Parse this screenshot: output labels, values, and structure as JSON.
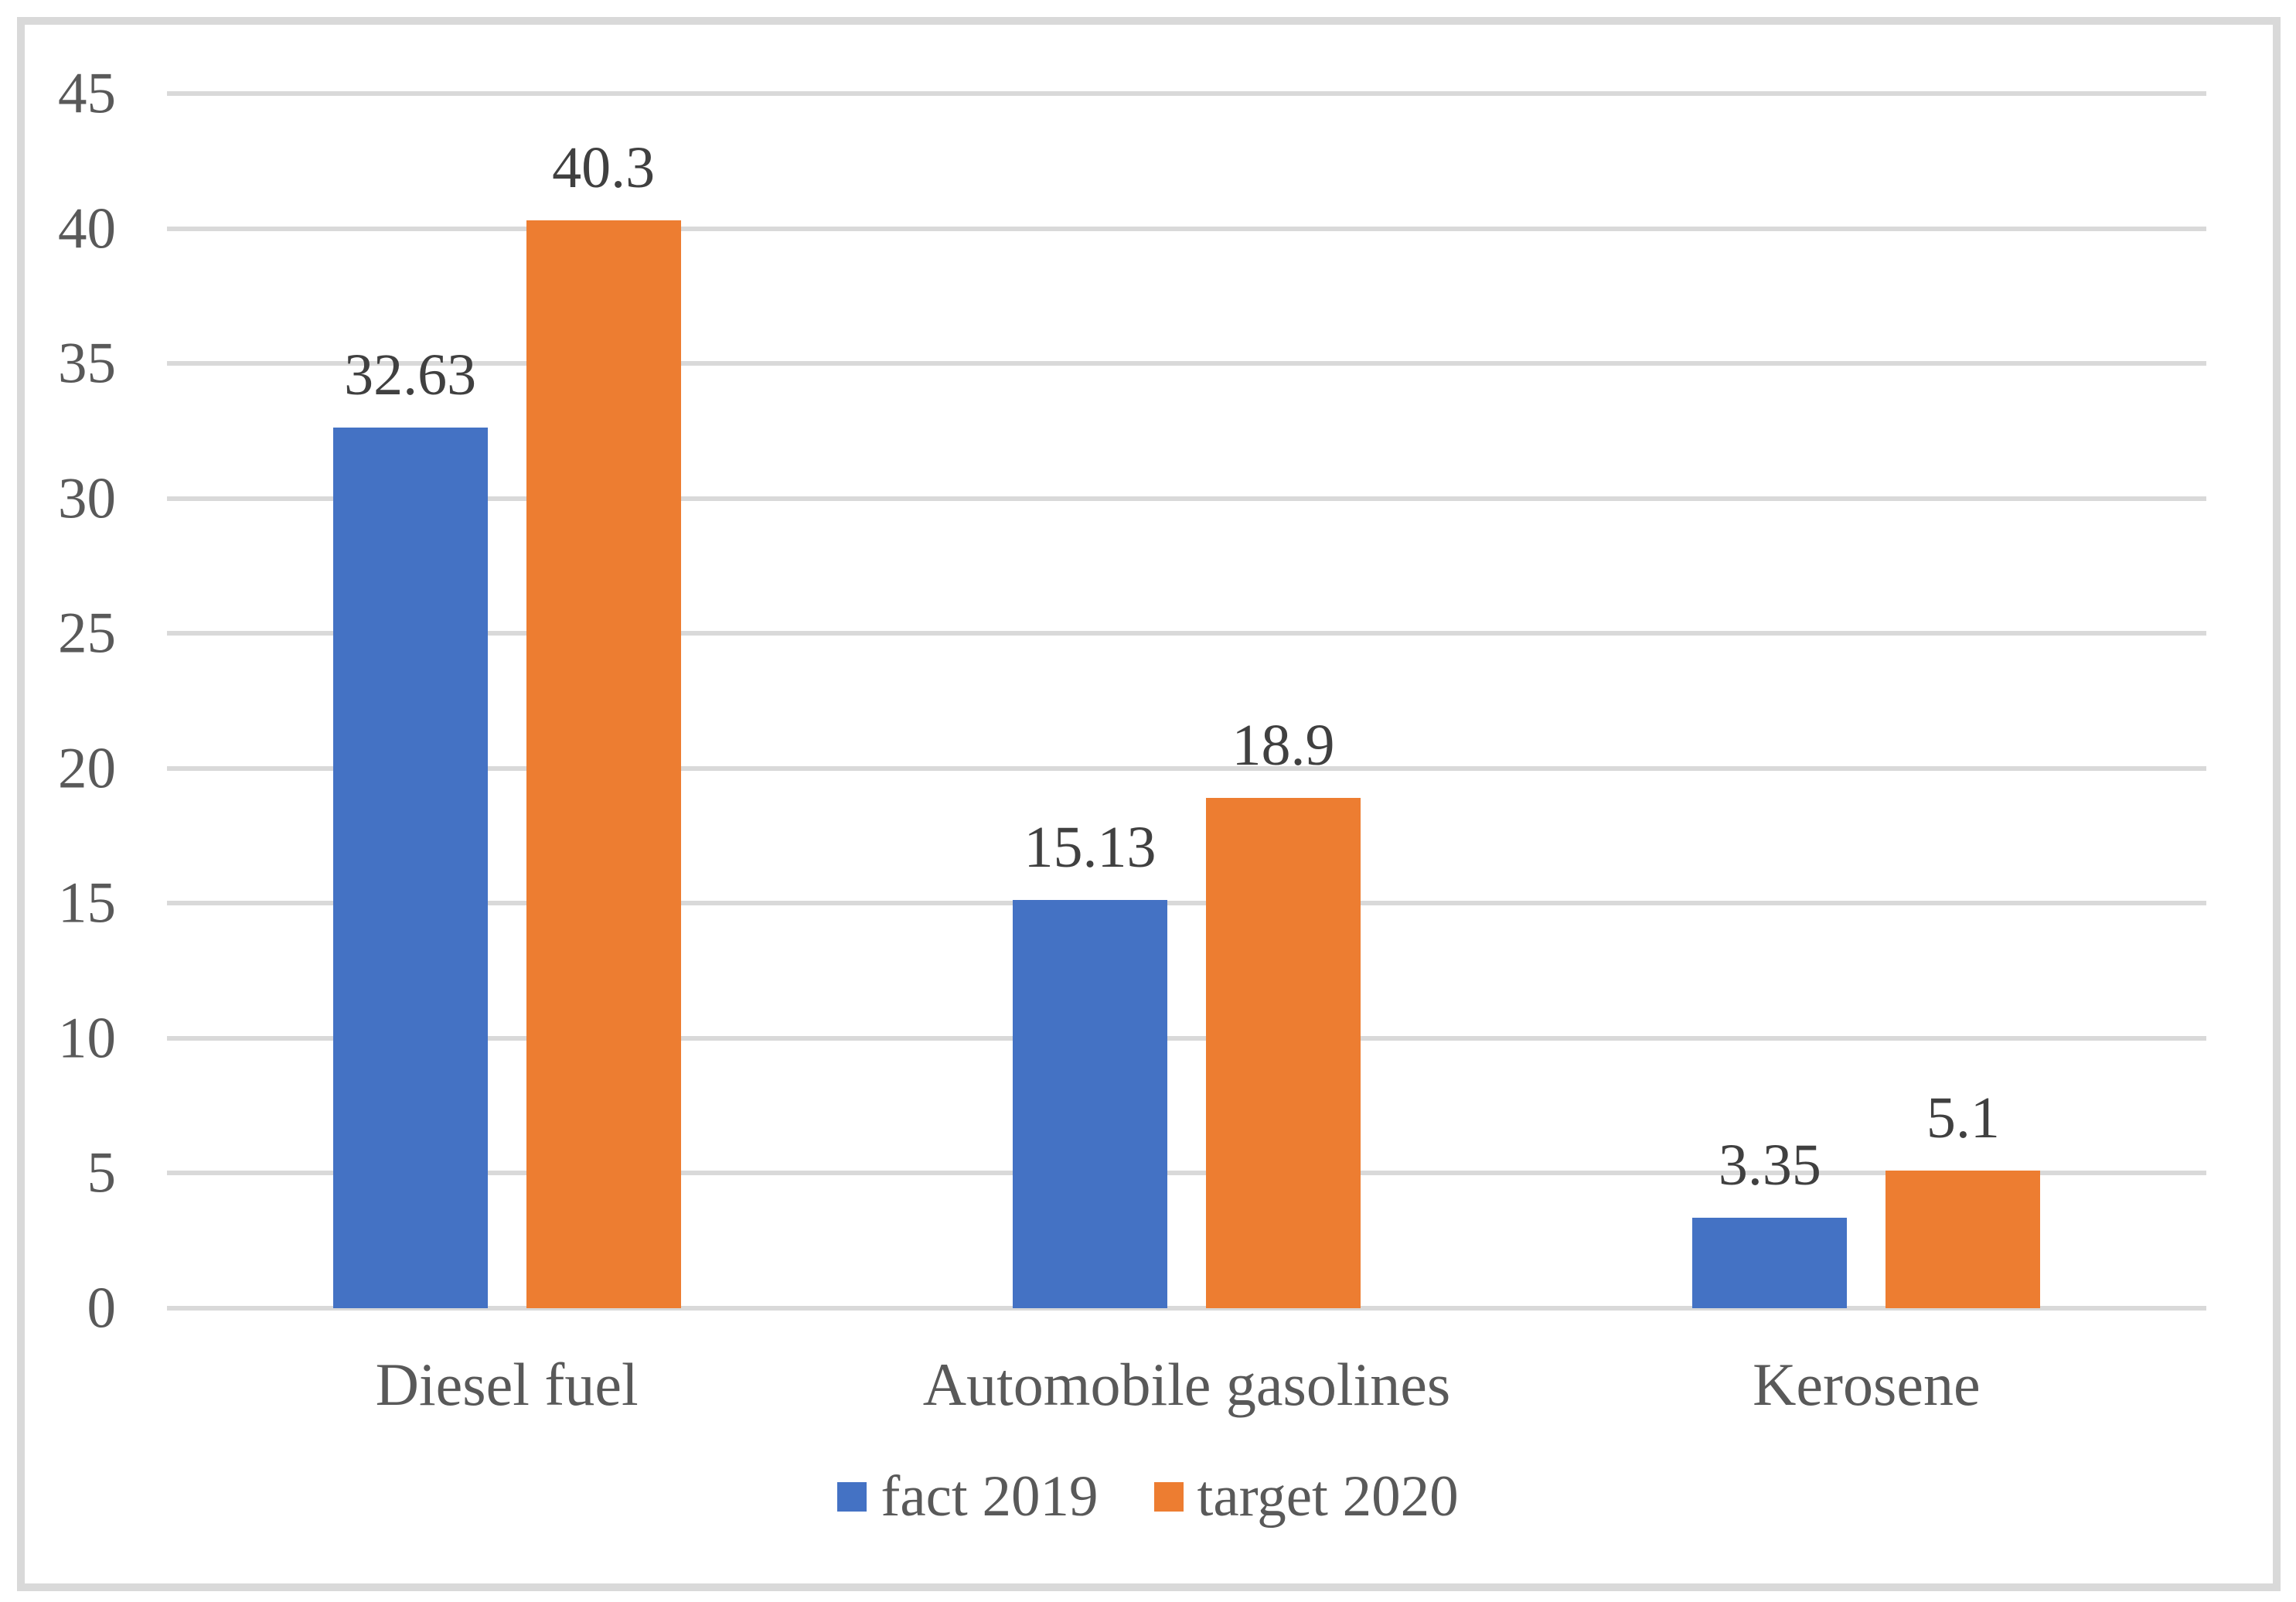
{
  "chart_data": {
    "type": "bar",
    "title": "",
    "xlabel": "",
    "ylabel": "",
    "categories": [
      "Diesel fuel",
      "Automobile gasolines",
      "Kerosene"
    ],
    "series": [
      {
        "name": "fact 2019",
        "color": "#4472C4",
        "values": [
          32.63,
          15.13,
          3.35
        ],
        "labels": [
          "32.63",
          "15.13",
          "3.35"
        ]
      },
      {
        "name": "target 2020",
        "color": "#ED7D31",
        "values": [
          40.3,
          18.9,
          5.1
        ],
        "labels": [
          "40.3",
          "18.9",
          "5.1"
        ]
      }
    ],
    "y_axis": {
      "min": 0,
      "max": 45,
      "step": 5,
      "ticks": [
        "0",
        "5",
        "10",
        "15",
        "20",
        "25",
        "30",
        "35",
        "40",
        "45"
      ]
    },
    "grid": true,
    "legend_position": "bottom-center"
  },
  "colors": {
    "grid": "#D9D9D9",
    "frame": "#D9D9D9",
    "tick_text": "#595959",
    "category_text": "#595959",
    "data_label_text": "#404040",
    "legend_text": "#595959",
    "background": "#FFFFFF"
  }
}
